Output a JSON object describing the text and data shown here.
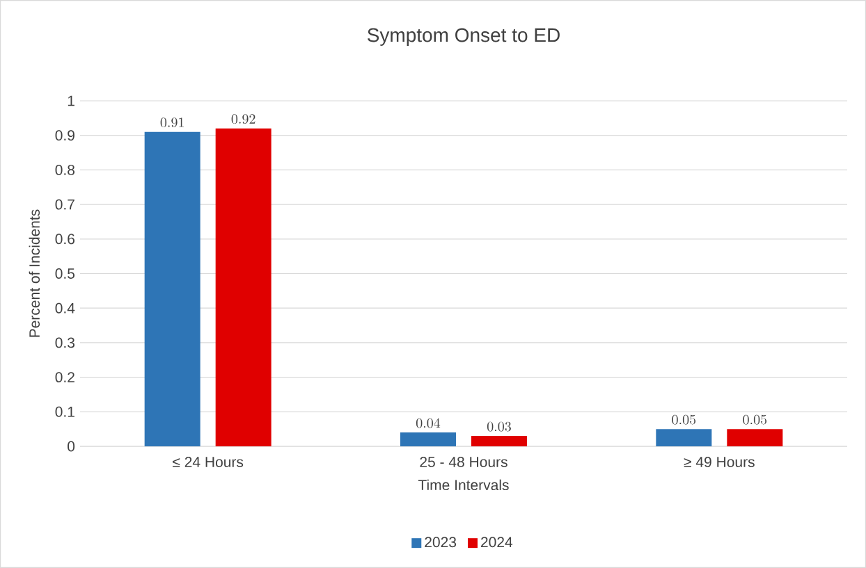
{
  "chart_data": {
    "type": "bar",
    "title": "Symptom Onset to ED",
    "xlabel": "Time Intervals",
    "ylabel": "Percent of Incidents",
    "categories": [
      "≤ 24 Hours",
      "25 - 48 Hours",
      "≥ 49 Hours"
    ],
    "series": [
      {
        "name": "2023",
        "color": "#2e75b6",
        "values": [
          0.91,
          0.04,
          0.05
        ]
      },
      {
        "name": "2024",
        "color": "#e00000",
        "values": [
          0.92,
          0.03,
          0.05
        ]
      }
    ],
    "ylim": [
      0,
      1
    ],
    "yticks": [
      0,
      0.1,
      0.2,
      0.3,
      0.4,
      0.5,
      0.6,
      0.7,
      0.8,
      0.9,
      1
    ],
    "grid": "y",
    "legend": "bottom",
    "data_labels": true
  }
}
